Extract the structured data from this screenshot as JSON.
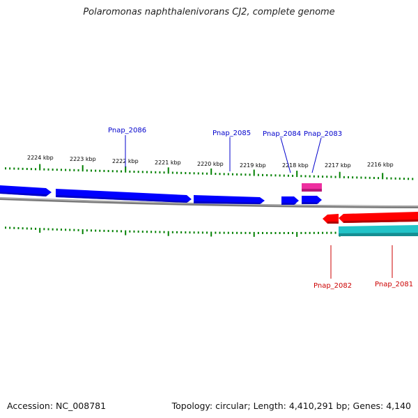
{
  "title": "Polaromonas naphthalenivorans CJ2, complete genome",
  "footer": {
    "accession": "Accession: NC_008781",
    "stats": "Topology: circular; Length: 4,410,291 bp; Genes: 4,140"
  },
  "colors": {
    "forward_gene": "#0000ff",
    "reverse_gene": "#ff0000",
    "pink_feature": "#ee2fa0",
    "cyan_feature": "#22c4c8",
    "backbone": "#808080",
    "ticks": "#008000",
    "label_forward": "#0000cc",
    "label_reverse": "#cc0000"
  },
  "scale_labels": [
    "2224 kbp",
    "2223 kbp",
    "2222 kbp",
    "2221 kbp",
    "2220 kbp",
    "2219 kbp",
    "2218 kbp",
    "2217 kbp",
    "2216 kbp"
  ],
  "gene_labels": {
    "top": [
      "Pnap_2086",
      "Pnap_2085",
      "Pnap_2084",
      "Pnap_2083"
    ],
    "bottom": [
      "Pnap_2082",
      "Pnap_2081"
    ]
  }
}
